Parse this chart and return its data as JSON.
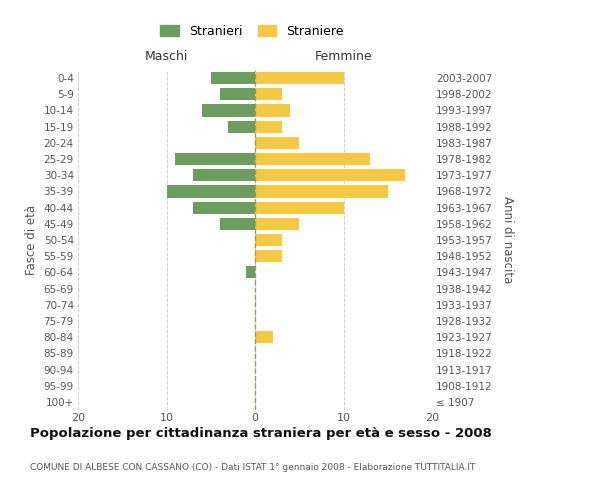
{
  "age_groups": [
    "100+",
    "95-99",
    "90-94",
    "85-89",
    "80-84",
    "75-79",
    "70-74",
    "65-69",
    "60-64",
    "55-59",
    "50-54",
    "45-49",
    "40-44",
    "35-39",
    "30-34",
    "25-29",
    "20-24",
    "15-19",
    "10-14",
    "5-9",
    "0-4"
  ],
  "birth_years": [
    "≤ 1907",
    "1908-1912",
    "1913-1917",
    "1918-1922",
    "1923-1927",
    "1928-1932",
    "1933-1937",
    "1938-1942",
    "1943-1947",
    "1948-1952",
    "1953-1957",
    "1958-1962",
    "1963-1967",
    "1968-1972",
    "1973-1977",
    "1978-1982",
    "1983-1987",
    "1988-1992",
    "1993-1997",
    "1998-2002",
    "2003-2007"
  ],
  "maschi": [
    0,
    0,
    0,
    0,
    0,
    0,
    0,
    0,
    1,
    0,
    0,
    4,
    7,
    10,
    7,
    9,
    0,
    3,
    6,
    4,
    5
  ],
  "femmine": [
    0,
    0,
    0,
    0,
    2,
    0,
    0,
    0,
    0,
    3,
    3,
    5,
    10,
    15,
    17,
    13,
    5,
    3,
    4,
    3,
    10
  ],
  "maschi_color": "#6a9e5e",
  "femmine_color": "#f5c842",
  "bg_color": "#ffffff",
  "grid_color": "#cccccc",
  "title": "Popolazione per cittadinanza straniera per età e sesso - 2008",
  "subtitle": "COMUNE DI ALBESE CON CASSANO (CO) - Dati ISTAT 1° gennaio 2008 - Elaborazione TUTTITALIA.IT",
  "ylabel_left": "Fasce di età",
  "ylabel_right": "Anni di nascita",
  "xlabel_maschi": "Maschi",
  "xlabel_femmine": "Femmine",
  "legend_maschi": "Stranieri",
  "legend_femmine": "Straniere",
  "xlim": 20
}
